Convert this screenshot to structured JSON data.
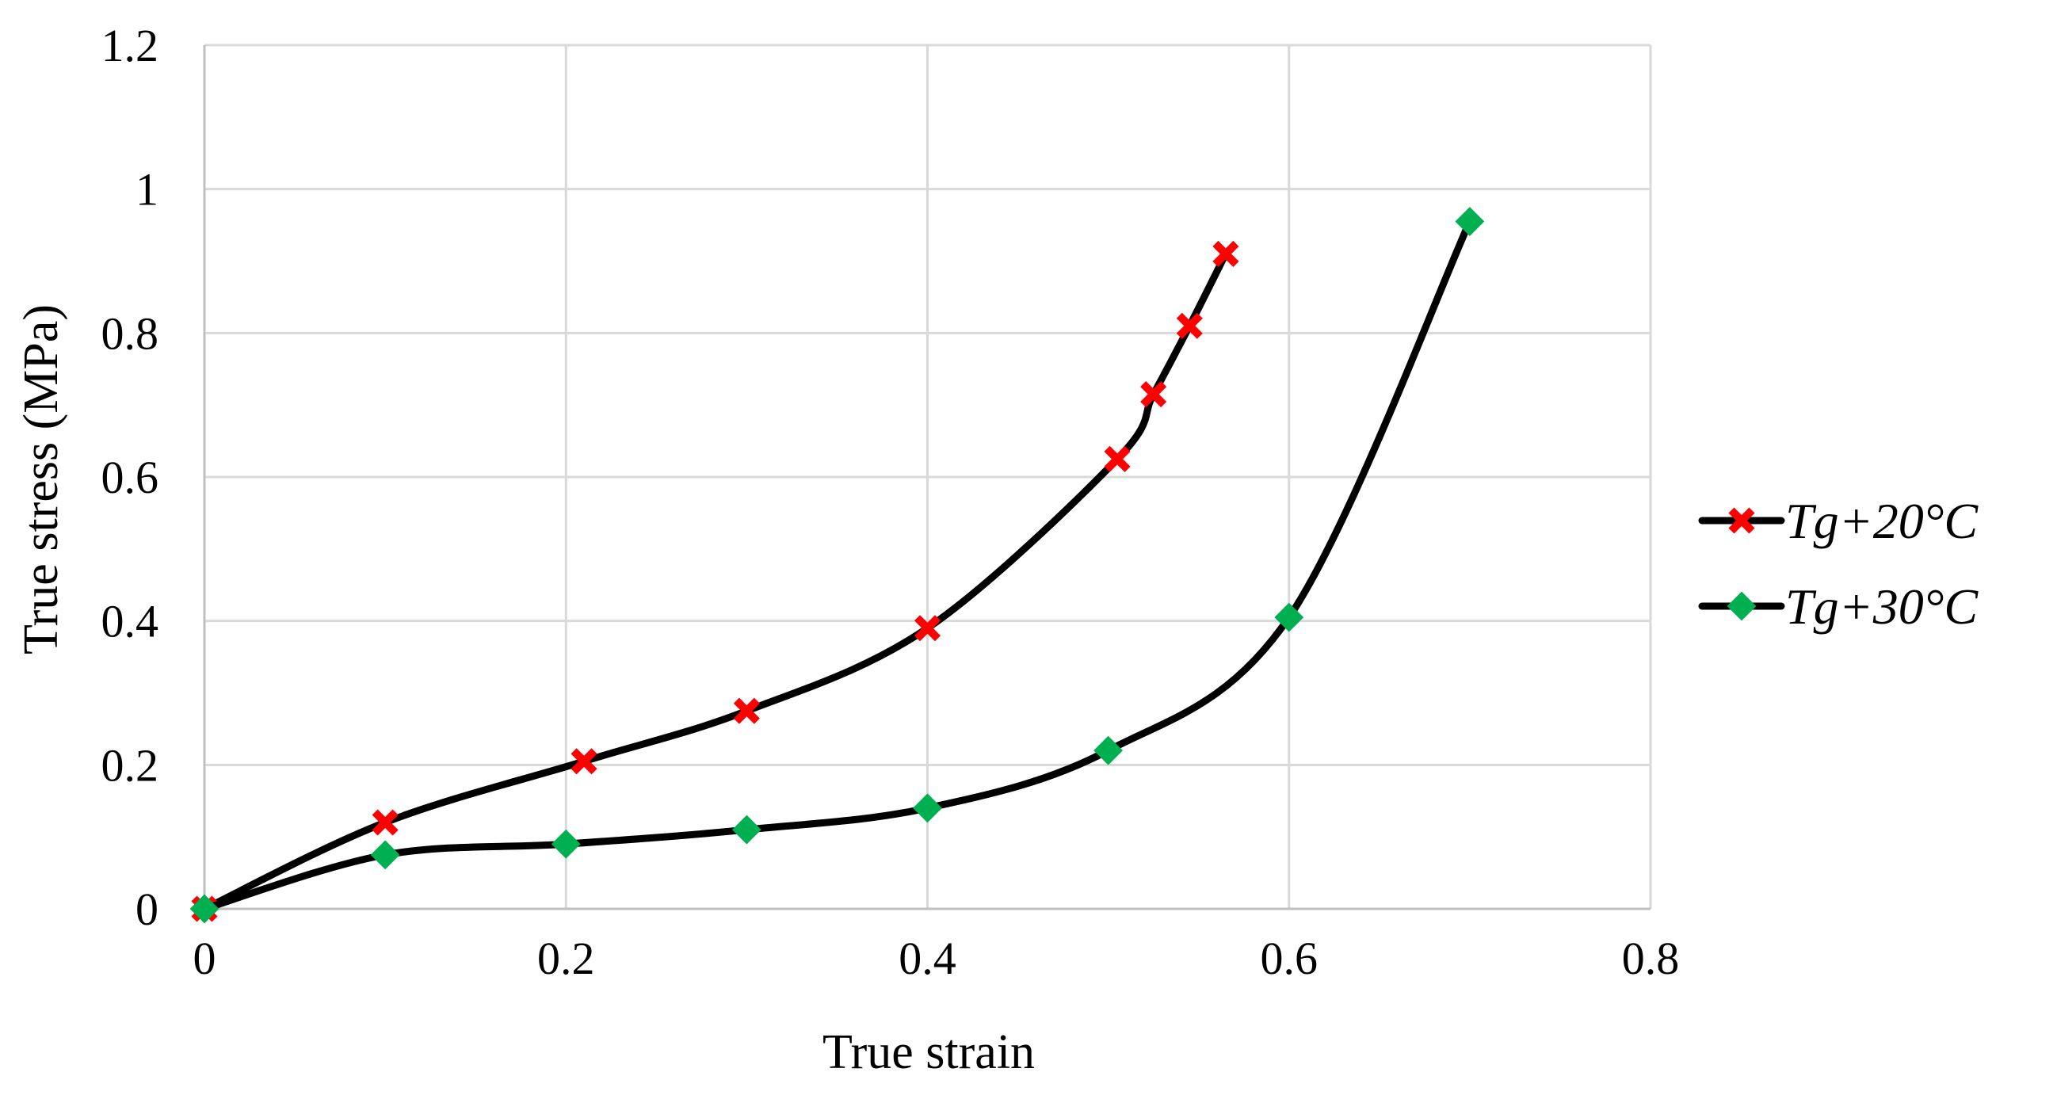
{
  "chart_data": {
    "type": "line",
    "title": "",
    "xlabel": "True strain",
    "ylabel": "True stress (MPa)",
    "xlim": [
      0,
      0.8
    ],
    "ylim": [
      0,
      1.2
    ],
    "xticks": [
      0,
      0.2,
      0.4,
      0.6,
      0.8
    ],
    "yticks": [
      0,
      0.2,
      0.4,
      0.6,
      0.8,
      1,
      1.2
    ],
    "xtick_labels": [
      "0",
      "0.2",
      "0.4",
      "0.6",
      "0.8"
    ],
    "ytick_labels": [
      "0",
      "0.2",
      "0.4",
      "0.6",
      "0.8",
      "1",
      "1.2"
    ],
    "grid": true,
    "legend_position": "right",
    "series": [
      {
        "name": "Tg+20°C",
        "marker": "x",
        "marker_color": "#ff0000",
        "line_color": "#000000",
        "x": [
          0,
          0.1,
          0.21,
          0.3,
          0.4,
          0.505,
          0.525,
          0.545,
          0.565
        ],
        "y": [
          0,
          0.12,
          0.205,
          0.275,
          0.39,
          0.625,
          0.715,
          0.81,
          0.91
        ]
      },
      {
        "name": "Tg+30°C",
        "marker": "diamond",
        "marker_color": "#00b050",
        "line_color": "#000000",
        "x": [
          0,
          0.1,
          0.2,
          0.3,
          0.4,
          0.5,
          0.6,
          0.7
        ],
        "y": [
          0,
          0.075,
          0.09,
          0.11,
          0.14,
          0.22,
          0.405,
          0.955
        ]
      }
    ]
  }
}
